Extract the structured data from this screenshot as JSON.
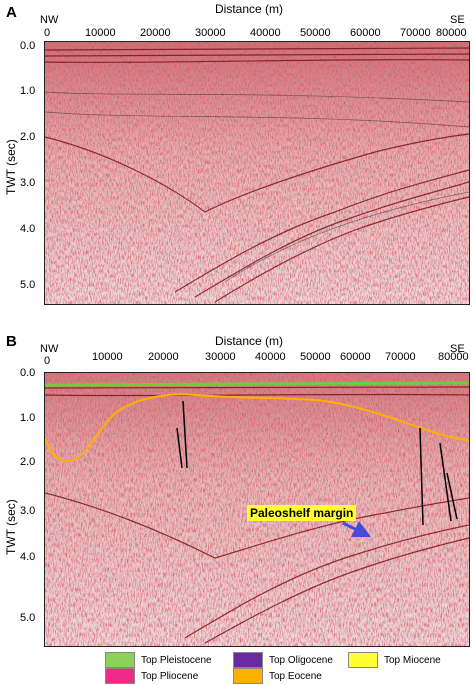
{
  "panels": [
    {
      "letter": "A",
      "x_title": "Distance (m)",
      "y_title": "TWT (sec)",
      "left_dir": "NW",
      "right_dir": "SE",
      "x_ticks": [
        "0",
        "10000",
        "20000",
        "30000",
        "40000",
        "50000",
        "60000",
        "70000",
        "80000"
      ],
      "y_ticks": [
        "0.0",
        "1.0",
        "2.0",
        "3.0",
        "4.0",
        "5.0"
      ]
    },
    {
      "letter": "B",
      "x_title": "Distance (m)",
      "y_title": "TWT (sec)",
      "left_dir": "NW",
      "right_dir": "SE",
      "x_ticks": [
        "0",
        "10000",
        "20000",
        "30000",
        "40000",
        "50000",
        "60000",
        "70000",
        "80000"
      ],
      "y_ticks": [
        "0.0",
        "1.0",
        "2.0",
        "3.0",
        "4.0",
        "5.0"
      ],
      "annotation": "Paleoshelf margin"
    }
  ],
  "legend": [
    {
      "label": "Top Pleistocene",
      "color": "#8ed15a"
    },
    {
      "label": "Top Oligocene",
      "color": "#6a2aa0"
    },
    {
      "label": "Top Miocene",
      "color": "#ffff33"
    },
    {
      "label": "Top Pliocene",
      "color": "#ef2b8a"
    },
    {
      "label": "Top Eocene",
      "color": "#ffb000"
    }
  ],
  "colors": {
    "reflector": "#c81e28",
    "horizon_eocene": "#ffb000",
    "horizon_pleistocene": "#6ccf3a",
    "fault": "#000000",
    "arrow": "#4a4ad8"
  }
}
